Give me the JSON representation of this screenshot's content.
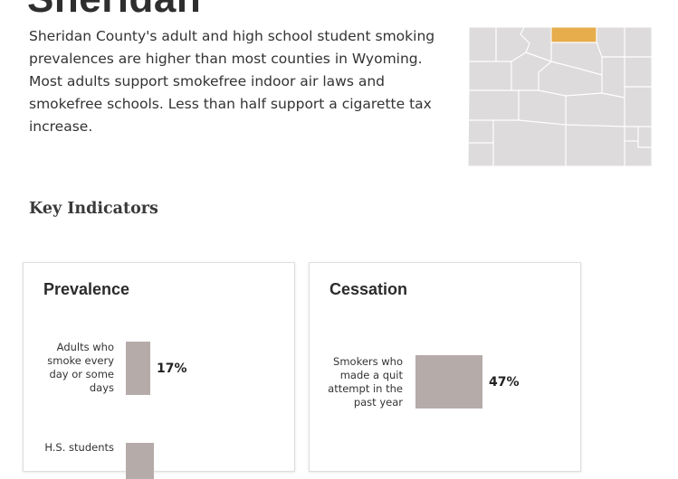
{
  "county": {
    "name": "Sheridan",
    "summary": "Sheridan County's adult and high school student smoking prevalences are higher than most counties in Wyoming. Most adults support smokefree indoor air laws and smokefree schools. Less than half support a cigarette tax increase.",
    "map": {
      "region": "Wyoming",
      "highlight_color": "#e7ac4c",
      "base_color": "#dddbdb"
    }
  },
  "key_indicators": {
    "heading": "Key Indicators",
    "cards": [
      {
        "title": "Prevalence",
        "indicators": [
          {
            "label": "Adults who smoke every day or some days",
            "value_text": "17%",
            "value": 17
          },
          {
            "label": "H.S. students",
            "value_text": "",
            "value": null
          }
        ]
      },
      {
        "title": "Cessation",
        "indicators": [
          {
            "label": "Smokers who made a quit attempt in the past year",
            "value_text": "47%",
            "value": 47
          }
        ]
      }
    ]
  },
  "colors": {
    "bar": "#b5aba8"
  }
}
